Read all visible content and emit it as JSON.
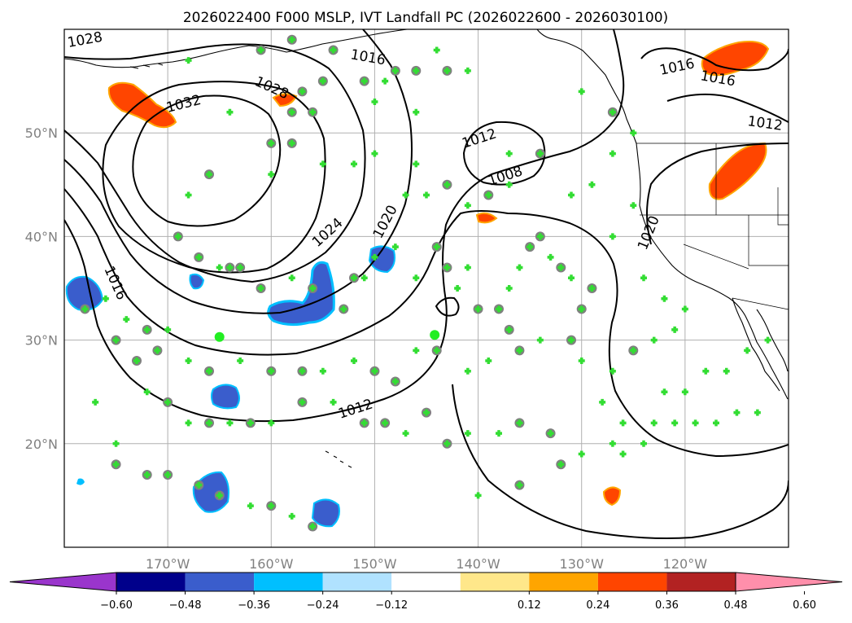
{
  "title": "2026022400 F000 MSLP, IVT Landfall PC (2026022600 - 2026030100)",
  "colors": {
    "frame": "#000000",
    "grid": "#b0b0b0",
    "coast": "#000000",
    "isobar": "#000000",
    "marker_face": "#808080",
    "marker_cross": "#33dd33"
  },
  "map": {
    "lon_range": [
      -180,
      -110
    ],
    "lat_range": [
      10,
      60
    ],
    "lon_ticks": [
      {
        "value": -170,
        "label": "170°W"
      },
      {
        "value": -160,
        "label": "160°W"
      },
      {
        "value": -150,
        "label": "150°W"
      },
      {
        "value": -140,
        "label": "140°W"
      },
      {
        "value": -130,
        "label": "130°W"
      },
      {
        "value": -120,
        "label": "120°W"
      }
    ],
    "lat_ticks": [
      {
        "value": 50,
        "label": "50°N"
      },
      {
        "value": 40,
        "label": "40°N"
      },
      {
        "value": 30,
        "label": "30°N"
      },
      {
        "value": 20,
        "label": "20°N"
      }
    ],
    "isobar_labels": [
      "1028",
      "1032",
      "1028",
      "1016",
      "1016",
      "1016",
      "1012",
      "1012",
      "1008",
      "1024",
      "1020",
      "1020",
      "1016",
      "1012"
    ]
  },
  "colorbar": {
    "ticks": [
      "−0.60",
      "−0.48",
      "−0.36",
      "−0.24",
      "−0.12",
      "0.12",
      "0.24",
      "0.36",
      "0.48",
      "0.60"
    ],
    "colors": [
      "#9a35cc",
      "#00008b",
      "#3a5dcc",
      "#00bfff",
      "#b0e2ff",
      "#ffffff",
      "#ffe78a",
      "#ffa500",
      "#ff4500",
      "#b22222",
      "#ff8fab"
    ]
  }
}
